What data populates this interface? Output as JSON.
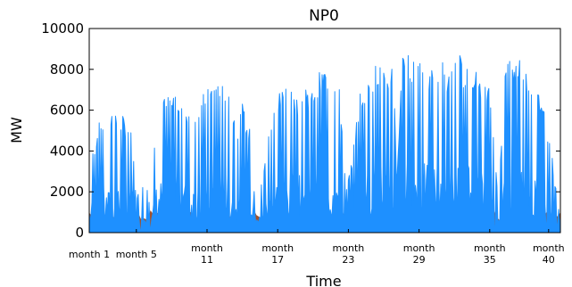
{
  "chart_data": {
    "type": "area",
    "title": "NP0",
    "xlabel": "Time",
    "ylabel": "MW",
    "ylim": [
      0,
      10000
    ],
    "yticks": [
      0,
      2000,
      4000,
      6000,
      8000,
      10000
    ],
    "ytick_labels": [
      "0",
      "2000",
      "4000",
      "6000",
      "8000",
      "10000"
    ],
    "xlim": [
      1,
      41
    ],
    "xticks": [
      {
        "month": 1,
        "label": [
          "month 1"
        ]
      },
      {
        "month": 5,
        "label": [
          "month 5"
        ]
      },
      {
        "month": 11,
        "label": [
          "month",
          "11"
        ]
      },
      {
        "month": 17,
        "label": [
          "month",
          "17"
        ]
      },
      {
        "month": 23,
        "label": [
          "month",
          "23"
        ]
      },
      {
        "month": 29,
        "label": [
          "month",
          "29"
        ]
      },
      {
        "month": 35,
        "label": [
          "month",
          "35"
        ]
      },
      {
        "month": 40,
        "label": [
          "month",
          "40"
        ]
      }
    ],
    "grid": false,
    "colors": {
      "primary": "#1e90ff",
      "secondary": "#a0522d"
    },
    "series": [
      {
        "envelope": [
          [
            1.0,
            3800
          ],
          [
            1.5,
            4500
          ],
          [
            2.0,
            5800
          ],
          [
            2.6,
            5200
          ],
          [
            3.0,
            6200
          ],
          [
            3.4,
            5900
          ],
          [
            3.9,
            5700
          ],
          [
            4.3,
            5100
          ],
          [
            4.6,
            5400
          ],
          [
            5.0,
            1600
          ],
          [
            5.3,
            2200
          ],
          [
            5.8,
            2900
          ],
          [
            6.2,
            1200
          ],
          [
            6.7,
            5900
          ],
          [
            7.3,
            6900
          ],
          [
            7.9,
            6600
          ],
          [
            8.4,
            7000
          ],
          [
            9.0,
            6400
          ],
          [
            9.7,
            5900
          ],
          [
            10.3,
            6600
          ],
          [
            11.0,
            7000
          ],
          [
            11.8,
            7500
          ],
          [
            12.4,
            7200
          ],
          [
            13.0,
            7000
          ],
          [
            13.5,
            5000
          ],
          [
            14.0,
            6300
          ],
          [
            14.5,
            5300
          ],
          [
            15.0,
            5300
          ],
          [
            15.5,
            2000
          ],
          [
            16.0,
            4000
          ],
          [
            16.6,
            6400
          ],
          [
            17.0,
            6900
          ],
          [
            17.5,
            7300
          ],
          [
            18.1,
            7900
          ],
          [
            18.6,
            6600
          ],
          [
            19.2,
            7600
          ],
          [
            19.8,
            6700
          ],
          [
            20.4,
            7800
          ],
          [
            21.1,
            8100
          ],
          [
            21.7,
            8200
          ],
          [
            22.3,
            6900
          ],
          [
            22.8,
            2000
          ],
          [
            23.4,
            4000
          ],
          [
            24.0,
            7000
          ],
          [
            24.6,
            7700
          ],
          [
            25.3,
            8300
          ],
          [
            25.8,
            8600
          ],
          [
            26.4,
            7100
          ],
          [
            26.8,
            9100
          ],
          [
            27.1,
            2400
          ],
          [
            27.6,
            9400
          ],
          [
            28.2,
            8600
          ],
          [
            28.7,
            8700
          ],
          [
            29.3,
            9000
          ],
          [
            29.9,
            8000
          ],
          [
            30.4,
            8800
          ],
          [
            31.0,
            8400
          ],
          [
            31.6,
            7700
          ],
          [
            32.2,
            9100
          ],
          [
            32.8,
            8300
          ],
          [
            33.3,
            8600
          ],
          [
            33.9,
            7900
          ],
          [
            34.5,
            7600
          ],
          [
            35.1,
            6900
          ],
          [
            35.7,
            1600
          ],
          [
            36.4,
            9200
          ],
          [
            37.0,
            8200
          ],
          [
            37.6,
            8800
          ],
          [
            38.3,
            7800
          ],
          [
            38.9,
            7200
          ],
          [
            39.5,
            6500
          ],
          [
            40.2,
            4200
          ],
          [
            40.8,
            1300
          ],
          [
            41.0,
            900
          ]
        ]
      }
    ]
  }
}
